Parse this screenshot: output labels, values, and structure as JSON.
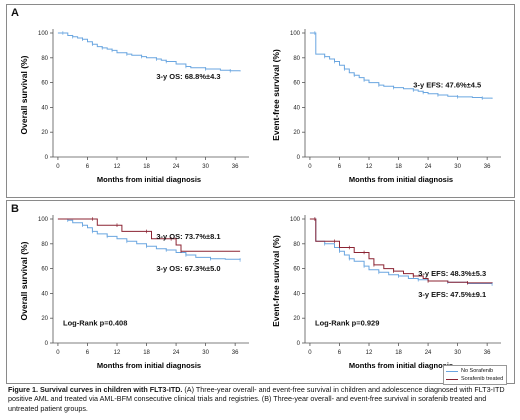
{
  "panels": [
    {
      "label": "A"
    },
    {
      "label": "B"
    }
  ],
  "chart_data": [
    {
      "type": "line",
      "panel": "A",
      "ylabel": "Overall survival (%)",
      "xlabel": "Months from initial diagnosis",
      "xticks": [
        0,
        6,
        12,
        18,
        24,
        30,
        36
      ],
      "yticks": [
        0,
        20,
        40,
        60,
        80,
        100
      ],
      "xlim": [
        -1,
        38
      ],
      "ylim": [
        0,
        100
      ],
      "grid": false,
      "series": [
        {
          "color": "#6aa6e0",
          "points": [
            [
              0,
              100
            ],
            [
              1,
              100
            ],
            [
              2,
              98
            ],
            [
              3,
              97
            ],
            [
              4,
              96
            ],
            [
              5,
              95
            ],
            [
              6,
              93
            ],
            [
              7,
              91
            ],
            [
              8,
              89
            ],
            [
              9,
              88
            ],
            [
              10,
              87
            ],
            [
              11,
              86
            ],
            [
              12,
              84
            ],
            [
              14,
              83
            ],
            [
              15,
              82
            ],
            [
              17,
              81
            ],
            [
              18,
              80
            ],
            [
              20,
              79
            ],
            [
              21,
              78
            ],
            [
              22,
              77
            ],
            [
              24,
              75
            ],
            [
              26,
              73
            ],
            [
              27,
              72
            ],
            [
              30,
              71
            ],
            [
              33,
              70
            ],
            [
              35,
              69.5
            ],
            [
              37,
              69
            ]
          ]
        }
      ],
      "annotations": [
        {
          "text": "3-y OS: 68.8%±4.3",
          "x": 20,
          "y": 63
        }
      ]
    },
    {
      "type": "line",
      "panel": "A",
      "ylabel": "Event-free survival (%)",
      "xlabel": "Months from initial diagnosis",
      "xticks": [
        0,
        6,
        12,
        18,
        24,
        30,
        36
      ],
      "yticks": [
        0,
        20,
        40,
        60,
        80,
        100
      ],
      "xlim": [
        -1,
        38
      ],
      "ylim": [
        0,
        100
      ],
      "grid": false,
      "series": [
        {
          "color": "#6aa6e0",
          "points": [
            [
              0,
              100
            ],
            [
              1,
              100
            ],
            [
              1.2,
              83
            ],
            [
              3,
              81
            ],
            [
              4,
              79
            ],
            [
              5,
              77
            ],
            [
              6,
              74
            ],
            [
              7,
              71
            ],
            [
              8,
              68
            ],
            [
              9,
              66
            ],
            [
              10,
              64
            ],
            [
              11,
              62
            ],
            [
              12,
              60
            ],
            [
              14,
              58
            ],
            [
              15,
              57
            ],
            [
              17,
              56
            ],
            [
              19,
              55
            ],
            [
              21,
              54
            ],
            [
              22,
              53
            ],
            [
              23,
              52
            ],
            [
              24,
              51
            ],
            [
              26,
              50
            ],
            [
              28,
              49
            ],
            [
              30,
              48.5
            ],
            [
              33,
              48
            ],
            [
              35,
              47.5
            ],
            [
              37,
              47
            ]
          ]
        }
      ],
      "annotations": [
        {
          "text": "3-y EFS: 47.6%±4.5",
          "x": 21,
          "y": 56
        }
      ]
    },
    {
      "type": "line",
      "panel": "B",
      "ylabel": "Overall survival (%)",
      "xlabel": "Months from initial diagnosis",
      "xticks": [
        0,
        6,
        12,
        18,
        24,
        30,
        36
      ],
      "yticks": [
        0,
        20,
        40,
        60,
        80,
        100
      ],
      "xlim": [
        -1,
        38
      ],
      "ylim": [
        0,
        100
      ],
      "grid": false,
      "series": [
        {
          "name": "No Sorafenib",
          "color": "#6aa6e0",
          "points": [
            [
              0,
              100
            ],
            [
              2,
              99
            ],
            [
              3,
              97
            ],
            [
              5,
              95
            ],
            [
              6,
              93
            ],
            [
              7,
              90
            ],
            [
              8,
              88
            ],
            [
              10,
              86
            ],
            [
              12,
              84
            ],
            [
              14,
              82
            ],
            [
              16,
              80
            ],
            [
              18,
              78
            ],
            [
              20,
              76
            ],
            [
              22,
              75
            ],
            [
              24,
              73
            ],
            [
              26,
              71
            ],
            [
              28,
              69
            ],
            [
              31,
              68
            ],
            [
              34,
              67.5
            ],
            [
              37,
              67
            ]
          ]
        },
        {
          "name": "Sorafenib treated",
          "color": "#8b2332",
          "points": [
            [
              0,
              100
            ],
            [
              7,
              100
            ],
            [
              8,
              95
            ],
            [
              12,
              95
            ],
            [
              13,
              90
            ],
            [
              18,
              90
            ],
            [
              19,
              84
            ],
            [
              23,
              84
            ],
            [
              24,
              79
            ],
            [
              25,
              74
            ],
            [
              37,
              74
            ]
          ]
        }
      ],
      "annotations": [
        {
          "text": "3-y OS: 73.7%±8.1",
          "x": 20,
          "y": 84
        },
        {
          "text": "3-y OS: 67.3%±5.0",
          "x": 20,
          "y": 58
        }
      ],
      "stat_text": "Log-Rank p=0.408"
    },
    {
      "type": "line",
      "panel": "B",
      "ylabel": "Event-free survival (%)",
      "xlabel": "Months from initial diagnosis",
      "xticks": [
        0,
        6,
        12,
        18,
        24,
        30,
        36
      ],
      "yticks": [
        0,
        20,
        40,
        60,
        80,
        100
      ],
      "xlim": [
        -1,
        38
      ],
      "ylim": [
        0,
        100
      ],
      "grid": false,
      "series": [
        {
          "name": "No Sorafenib",
          "color": "#6aa6e0",
          "points": [
            [
              0,
              100
            ],
            [
              1,
              100
            ],
            [
              1.2,
              82
            ],
            [
              3,
              80
            ],
            [
              5,
              77
            ],
            [
              6,
              74
            ],
            [
              7,
              71
            ],
            [
              8,
              68
            ],
            [
              9,
              66
            ],
            [
              11,
              62
            ],
            [
              12,
              59
            ],
            [
              14,
              57
            ],
            [
              16,
              55
            ],
            [
              18,
              54
            ],
            [
              20,
              52
            ],
            [
              22,
              51
            ],
            [
              24,
              50
            ],
            [
              28,
              49
            ],
            [
              32,
              48
            ],
            [
              37,
              47.5
            ]
          ]
        },
        {
          "name": "Sorafenib treated",
          "color": "#8b2332",
          "points": [
            [
              0,
              100
            ],
            [
              1,
              100
            ],
            [
              1.2,
              82
            ],
            [
              5,
              82
            ],
            [
              6,
              77
            ],
            [
              8,
              77
            ],
            [
              9,
              73
            ],
            [
              11,
              73
            ],
            [
              12,
              68
            ],
            [
              13,
              63
            ],
            [
              15,
              60
            ],
            [
              17,
              58
            ],
            [
              19,
              56
            ],
            [
              21,
              54
            ],
            [
              23,
              52
            ],
            [
              24,
              50
            ],
            [
              28,
              49
            ],
            [
              32,
              48.5
            ],
            [
              37,
              48.3
            ]
          ]
        }
      ],
      "annotations": [
        {
          "text": "3-y EFS: 48.3%±5.3",
          "x": 22,
          "y": 54
        },
        {
          "text": "3-y EFS: 47.5%±9.1",
          "x": 22,
          "y": 37
        }
      ],
      "stat_text": "Log-Rank p=0.929"
    }
  ],
  "legend": {
    "items": [
      {
        "label": "No Sorafenib",
        "color": "#6aa6e0"
      },
      {
        "label": "Sorafenib treated",
        "color": "#8b2332"
      }
    ]
  },
  "caption": {
    "lead": "Figure 1. Survival curves in children with FLT3-ITD.",
    "body": " (A) Three-year overall- and event-free survival in children and adolescence diagnosed with FLT3-ITD positive AML and treated via AML-BFM consecutive clinical trials and registries. (B) Three-year overall- and event-free survival in sorafenib treated and untreated patient groups."
  }
}
